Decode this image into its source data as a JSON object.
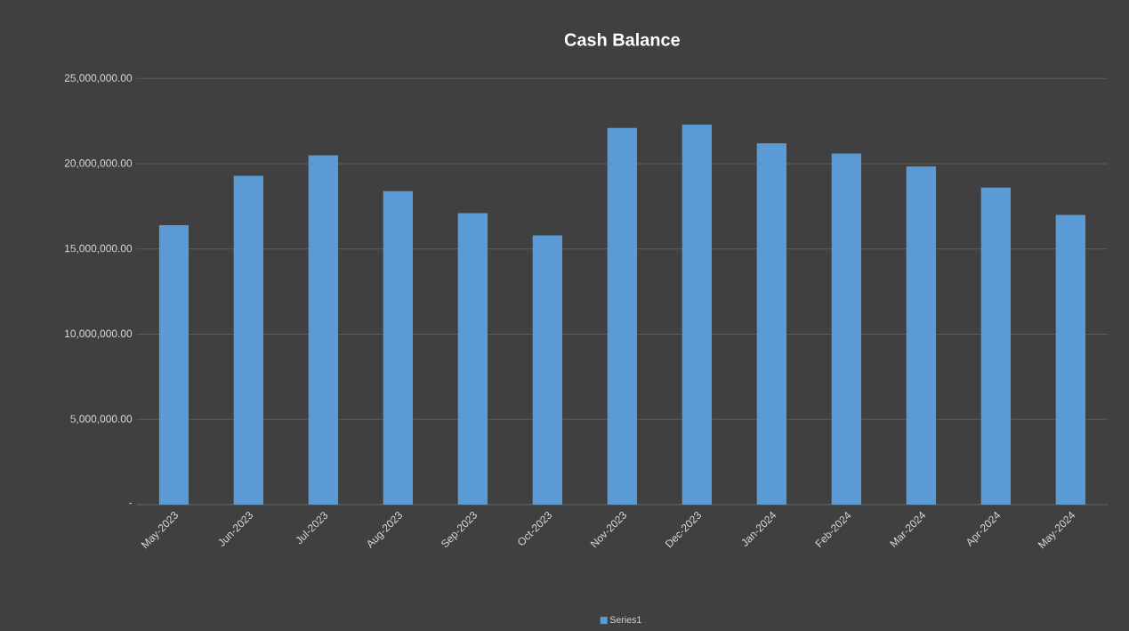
{
  "chart_data": {
    "type": "bar",
    "title": "Cash Balance",
    "categories": [
      "May-2023",
      "Jun-2023",
      "Jul-2023",
      "Aug-2023",
      "Sep-2023",
      "Oct-2023",
      "Nov-2023",
      "Dec-2023",
      "Jan-2024",
      "Feb-2024",
      "Mar-2024",
      "Apr-2024",
      "May-2024"
    ],
    "series": [
      {
        "name": "Series1",
        "color": "#5b9bd5",
        "values": [
          16400000,
          19300000,
          20500000,
          18400000,
          17100000,
          15800000,
          22100000,
          22300000,
          21200000,
          20600000,
          19850000,
          18600000,
          17000000
        ]
      }
    ],
    "ylim": [
      0,
      25000000
    ],
    "yticks": [
      {
        "value": 0,
        "label": "-"
      },
      {
        "value": 5000000,
        "label": "5,000,000.00"
      },
      {
        "value": 10000000,
        "label": "10,000,000.00"
      },
      {
        "value": 15000000,
        "label": "15,000,000.00"
      },
      {
        "value": 20000000,
        "label": "20,000,000.00"
      },
      {
        "value": 25000000,
        "label": "25,000,000.00"
      }
    ],
    "grid": "y",
    "legend": "bottom"
  }
}
